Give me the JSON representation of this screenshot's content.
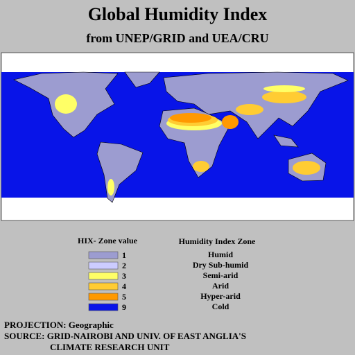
{
  "header": {
    "title": "Global Humidity Index",
    "subtitle": "from UNEP/GRID and UEA/CRU"
  },
  "legend": {
    "value_heading": "HIX- Zone value",
    "zone_heading": "Humidity Index Zone",
    "items": [
      {
        "value": 1,
        "zone": "Humid",
        "color": "#9c9cd0"
      },
      {
        "value": 2,
        "zone": "Dry Sub-humid",
        "color": "#ccccff"
      },
      {
        "value": 3,
        "zone": "Semi-arid",
        "color": "#ffff66"
      },
      {
        "value": 4,
        "zone": "Arid",
        "color": "#ffcc33"
      },
      {
        "value": 5,
        "zone": "Hyper-arid",
        "color": "#ff9900"
      },
      {
        "value": 9,
        "zone": "Cold",
        "color": "#0814e8"
      }
    ]
  },
  "footer": {
    "projection": "PROJECTION: Geographic",
    "source": [
      "SOURCE: GRID-NAIROBI AND UNIV. OF EAST ANGLIA'S",
      "CLIMATE RESEARCH UNIT"
    ]
  }
}
